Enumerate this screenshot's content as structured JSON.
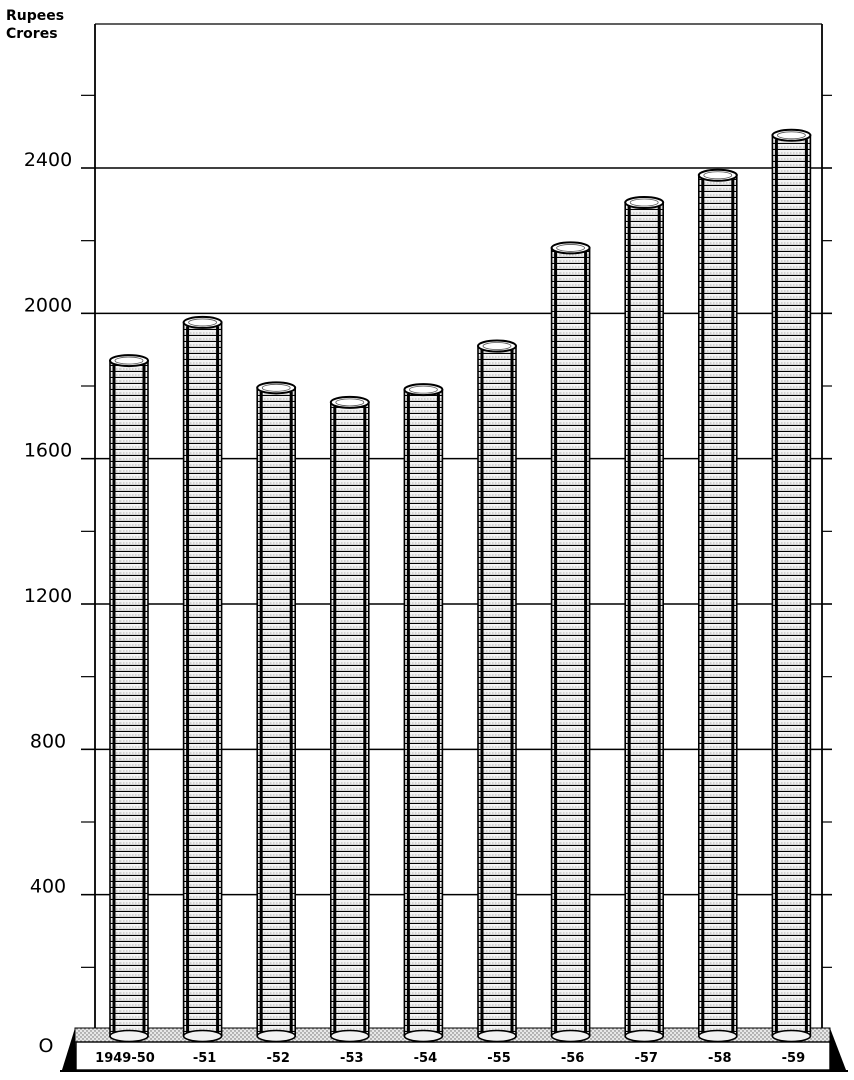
{
  "chart_data": {
    "type": "bar",
    "title": "",
    "xlabel": "",
    "ylabel": "",
    "unit_line1": "Rupees",
    "unit_line2": "Crores",
    "categories": [
      "1949-50",
      "-51",
      "-52",
      "-53",
      "-54",
      "-55",
      "-56",
      "-57",
      "-58",
      "-59"
    ],
    "values": [
      1870,
      1975,
      1795,
      1755,
      1790,
      1910,
      2180,
      2305,
      2380,
      2490
    ],
    "ylim": [
      0,
      2800
    ],
    "yticks": [
      0,
      400,
      800,
      1200,
      1600,
      2000,
      2400
    ],
    "yticks_labels": [
      "O",
      "400",
      "800",
      "1200",
      "1600",
      "2000",
      "2400"
    ],
    "minor_tick_step": 200,
    "grid": true,
    "bar_style": "stacked coins",
    "colors": {
      "ink": "#000000",
      "coin_face": "#e6e6e6",
      "base_fill": "#d9d9d9"
    }
  }
}
